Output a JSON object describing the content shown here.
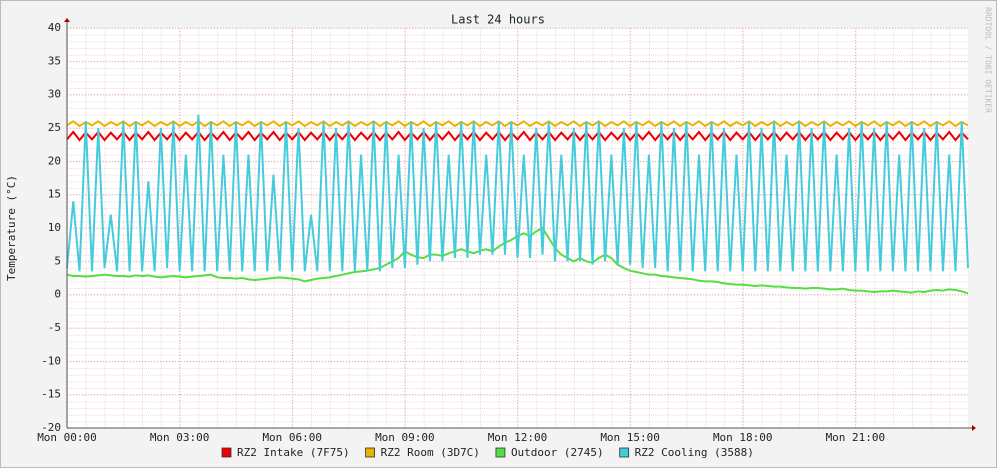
{
  "chart_data": {
    "type": "line",
    "title": "Last 24 hours",
    "ylabel": "Temperature (°C)",
    "watermark": "RRDTOOL / TOBI OETIKER",
    "grid": true,
    "xlim": [
      0,
      1440
    ],
    "xticks": [
      {
        "value": 0,
        "label": "Mon 00:00"
      },
      {
        "value": 180,
        "label": "Mon 03:00"
      },
      {
        "value": 360,
        "label": "Mon 06:00"
      },
      {
        "value": 540,
        "label": "Mon 09:00"
      },
      {
        "value": 720,
        "label": "Mon 12:00"
      },
      {
        "value": 900,
        "label": "Mon 15:00"
      },
      {
        "value": 1080,
        "label": "Mon 18:00"
      },
      {
        "value": 1260,
        "label": "Mon 21:00"
      }
    ],
    "ylim": [
      -20,
      40
    ],
    "yticks": [
      -20,
      -15,
      -10,
      -5,
      0,
      5,
      10,
      15,
      20,
      25,
      30,
      35,
      40
    ],
    "x": [
      0,
      10,
      20,
      30,
      40,
      50,
      60,
      70,
      80,
      90,
      100,
      110,
      120,
      130,
      140,
      150,
      160,
      170,
      180,
      190,
      200,
      210,
      220,
      230,
      240,
      250,
      260,
      270,
      280,
      290,
      300,
      310,
      320,
      330,
      340,
      350,
      360,
      370,
      380,
      390,
      400,
      410,
      420,
      430,
      440,
      450,
      460,
      470,
      480,
      490,
      500,
      510,
      520,
      530,
      540,
      550,
      560,
      570,
      580,
      590,
      600,
      610,
      620,
      630,
      640,
      650,
      660,
      670,
      680,
      690,
      700,
      710,
      720,
      730,
      740,
      750,
      760,
      770,
      780,
      790,
      800,
      810,
      820,
      830,
      840,
      850,
      860,
      870,
      880,
      890,
      900,
      910,
      920,
      930,
      940,
      950,
      960,
      970,
      980,
      990,
      1000,
      1010,
      1020,
      1030,
      1040,
      1050,
      1060,
      1070,
      1080,
      1090,
      1100,
      1110,
      1120,
      1130,
      1140,
      1150,
      1160,
      1170,
      1180,
      1190,
      1200,
      1210,
      1220,
      1230,
      1240,
      1250,
      1260,
      1270,
      1280,
      1290,
      1300,
      1310,
      1320,
      1330,
      1340,
      1350,
      1360,
      1370,
      1380,
      1390,
      1400,
      1410,
      1420,
      1430,
      1440
    ],
    "series": [
      {
        "name": "RZ2 Intake (7F75)",
        "color": "#ee0000",
        "values": [
          23.3,
          24.4,
          23.2,
          24.3,
          23.3,
          24.4,
          23.2,
          24.3,
          23.3,
          24.4,
          23.2,
          24.3,
          23.3,
          24.4,
          23.2,
          24.3,
          23.3,
          24.4,
          23.2,
          24.3,
          23.3,
          24.4,
          23.2,
          24.3,
          23.3,
          24.4,
          23.2,
          24.3,
          23.3,
          24.4,
          23.2,
          24.3,
          23.3,
          24.4,
          23.2,
          24.3,
          23.3,
          24.4,
          23.2,
          24.3,
          23.3,
          24.4,
          23.2,
          24.3,
          23.3,
          24.4,
          23.2,
          24.3,
          23.3,
          24.4,
          23.2,
          24.3,
          23.3,
          24.4,
          23.2,
          24.3,
          23.3,
          24.4,
          23.2,
          24.3,
          23.3,
          24.4,
          23.2,
          24.3,
          23.3,
          24.4,
          23.2,
          24.3,
          23.3,
          24.4,
          23.2,
          24.3,
          23.3,
          24.4,
          23.2,
          24.3,
          23.3,
          24.4,
          23.2,
          24.3,
          23.3,
          24.4,
          23.2,
          24.3,
          23.3,
          24.4,
          23.2,
          24.3,
          23.3,
          24.4,
          23.2,
          24.3,
          23.3,
          24.4,
          23.2,
          24.3,
          23.3,
          24.4,
          23.2,
          24.3,
          23.3,
          24.4,
          23.2,
          24.3,
          23.3,
          24.4,
          23.2,
          24.3,
          23.3,
          24.4,
          23.2,
          24.3,
          23.3,
          24.4,
          23.2,
          24.3,
          23.3,
          24.4,
          23.2,
          24.3,
          23.3,
          24.4,
          23.2,
          24.3,
          23.3,
          24.4,
          23.2,
          24.3,
          23.3,
          24.4,
          23.2,
          24.3,
          23.3,
          24.4,
          23.2,
          24.3,
          23.3,
          24.4,
          23.2,
          24.3,
          23.3,
          24.4,
          23.2,
          24.3,
          23.3
        ]
      },
      {
        "name": "RZ2 Room (3D7C)",
        "color": "#e8b400",
        "values": [
          25.4,
          26.0,
          25.3,
          25.9,
          25.4,
          26.0,
          25.3,
          25.9,
          25.4,
          26.0,
          25.3,
          25.9,
          25.4,
          26.0,
          25.3,
          25.9,
          25.4,
          26.0,
          25.3,
          25.9,
          25.4,
          26.0,
          25.3,
          25.9,
          25.4,
          26.0,
          25.3,
          25.9,
          25.4,
          26.0,
          25.3,
          25.9,
          25.4,
          26.0,
          25.3,
          25.9,
          25.4,
          26.0,
          25.3,
          25.9,
          25.4,
          26.0,
          25.3,
          25.9,
          25.4,
          26.0,
          25.3,
          25.9,
          25.4,
          26.0,
          25.3,
          25.9,
          25.4,
          26.0,
          25.3,
          25.9,
          25.4,
          26.0,
          25.3,
          25.9,
          25.4,
          26.0,
          25.3,
          25.9,
          25.4,
          26.0,
          25.3,
          25.9,
          25.4,
          26.0,
          25.3,
          25.9,
          25.4,
          26.0,
          25.3,
          25.9,
          25.4,
          26.0,
          25.3,
          25.9,
          25.4,
          26.0,
          25.3,
          25.9,
          25.4,
          26.0,
          25.3,
          25.9,
          25.4,
          26.0,
          25.3,
          25.9,
          25.4,
          26.0,
          25.3,
          25.9,
          25.4,
          26.0,
          25.3,
          25.9,
          25.4,
          26.0,
          25.3,
          25.9,
          25.4,
          26.0,
          25.3,
          25.9,
          25.4,
          26.0,
          25.3,
          25.9,
          25.4,
          26.0,
          25.3,
          25.9,
          25.4,
          26.0,
          25.3,
          25.9,
          25.4,
          26.0,
          25.3,
          25.9,
          25.4,
          26.0,
          25.3,
          25.9,
          25.4,
          26.0,
          25.3,
          25.9,
          25.4,
          26.0,
          25.3,
          25.9,
          25.4,
          26.0,
          25.3,
          25.9,
          25.4,
          26.0,
          25.3,
          25.9,
          25.4
        ]
      },
      {
        "name": "Outdoor (2745)",
        "color": "#55dd44",
        "values": [
          3,
          2.8,
          2.8,
          2.7,
          2.8,
          2.9,
          3,
          2.9,
          2.8,
          2.8,
          2.7,
          2.9,
          2.8,
          2.9,
          2.7,
          2.6,
          2.7,
          2.8,
          2.7,
          2.6,
          2.7,
          2.8,
          2.9,
          3,
          2.6,
          2.5,
          2.5,
          2.4,
          2.5,
          2.3,
          2.2,
          2.3,
          2.4,
          2.5,
          2.6,
          2.5,
          2.4,
          2.3,
          2.0,
          2.2,
          2.4,
          2.5,
          2.6,
          2.8,
          3.0,
          3.2,
          3.4,
          3.5,
          3.6,
          3.8,
          4.0,
          4.5,
          5.0,
          5.5,
          6.5,
          6.0,
          5.6,
          5.5,
          6.0,
          6.0,
          5.8,
          6.2,
          6.5,
          6.8,
          6.5,
          6.2,
          6.6,
          6.8,
          6.5,
          7.2,
          7.8,
          8.2,
          8.8,
          9.2,
          8.8,
          9.5,
          10,
          8.5,
          7,
          6,
          5.5,
          5,
          5.5,
          5,
          4.8,
          5.5,
          6,
          5.5,
          4.5,
          4,
          3.6,
          3.4,
          3.2,
          3,
          3,
          2.8,
          2.7,
          2.6,
          2.5,
          2.4,
          2.3,
          2.1,
          2,
          2,
          1.9,
          1.7,
          1.6,
          1.5,
          1.5,
          1.4,
          1.3,
          1.4,
          1.3,
          1.2,
          1.2,
          1.1,
          1,
          1,
          0.9,
          1,
          1,
          0.9,
          0.8,
          0.8,
          0.9,
          0.7,
          0.6,
          0.6,
          0.5,
          0.4,
          0.5,
          0.5,
          0.6,
          0.5,
          0.4,
          0.3,
          0.5,
          0.4,
          0.6,
          0.7,
          0.6,
          0.8,
          0.7,
          0.5,
          0.2
        ]
      },
      {
        "name": "RZ2 Cooling (3588)",
        "color": "#44ccdd",
        "values": [
          4,
          14,
          3.5,
          26,
          3.5,
          25,
          4,
          12,
          3.5,
          26,
          3.5,
          26,
          3.5,
          17,
          3.5,
          25,
          4,
          26,
          3.5,
          21,
          3.5,
          27,
          3.5,
          26,
          3.5,
          21,
          3.5,
          26,
          3.5,
          21,
          3.5,
          26,
          3.5,
          18,
          3.5,
          26,
          3.5,
          25,
          3.5,
          12,
          3.5,
          26,
          3.5,
          25,
          3.5,
          26,
          3.5,
          21,
          3.5,
          26,
          3.5,
          26,
          4,
          21,
          4,
          26,
          4.5,
          25,
          5,
          26,
          5,
          21,
          5.5,
          26,
          5.5,
          26,
          6,
          21,
          6,
          26,
          6,
          26,
          5.5,
          21,
          5.5,
          25,
          6,
          26,
          5,
          21,
          5,
          25,
          5,
          26,
          4.5,
          26,
          5,
          21,
          4.5,
          25,
          4.5,
          26,
          4,
          21,
          4,
          26,
          3.5,
          25,
          3.5,
          26,
          3.5,
          21,
          3.5,
          26,
          3.5,
          25,
          3.5,
          21,
          3.5,
          26,
          3.5,
          25,
          3.5,
          26,
          3.5,
          21,
          3.5,
          26,
          3.5,
          25,
          3.5,
          26,
          3.5,
          21,
          3.5,
          25,
          3.5,
          26,
          3.5,
          25,
          3.5,
          26,
          3.5,
          21,
          3.5,
          26,
          3.5,
          25,
          3.5,
          26,
          3.5,
          21,
          3.5,
          26,
          4
        ]
      }
    ]
  }
}
